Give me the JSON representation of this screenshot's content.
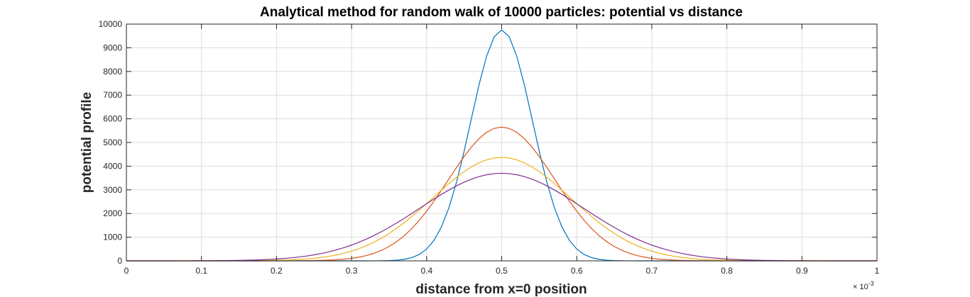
{
  "chart_data": {
    "type": "line",
    "title": "Analytical method for random walk of 10000 particles: potential vs distance",
    "xlabel": "distance from x=0 position",
    "ylabel": "potential profile",
    "x_multiplier_text": "× 10",
    "x_multiplier_exponent": "-3",
    "xlim": [
      0,
      1
    ],
    "ylim": [
      0,
      10000
    ],
    "xticks": [
      "0",
      "0.1",
      "0.2",
      "0.3",
      "0.4",
      "0.5",
      "0.6",
      "0.7",
      "0.8",
      "0.9",
      "1"
    ],
    "yticks": [
      "0",
      "1000",
      "2000",
      "3000",
      "4000",
      "5000",
      "6000",
      "7000",
      "8000",
      "9000",
      "10000"
    ],
    "grid": true,
    "series": [
      {
        "color": "#0072BD",
        "peak_x": 0.5,
        "peak_y": 9750,
        "sigma": 0.041
      },
      {
        "color": "#D95319",
        "peak_x": 0.5,
        "peak_y": 5650,
        "sigma": 0.071
      },
      {
        "color": "#EDB120",
        "peak_x": 0.5,
        "peak_y": 4370,
        "sigma": 0.092
      },
      {
        "color": "#7E2F8E",
        "peak_x": 0.5,
        "peak_y": 3700,
        "sigma": 0.108
      }
    ]
  }
}
